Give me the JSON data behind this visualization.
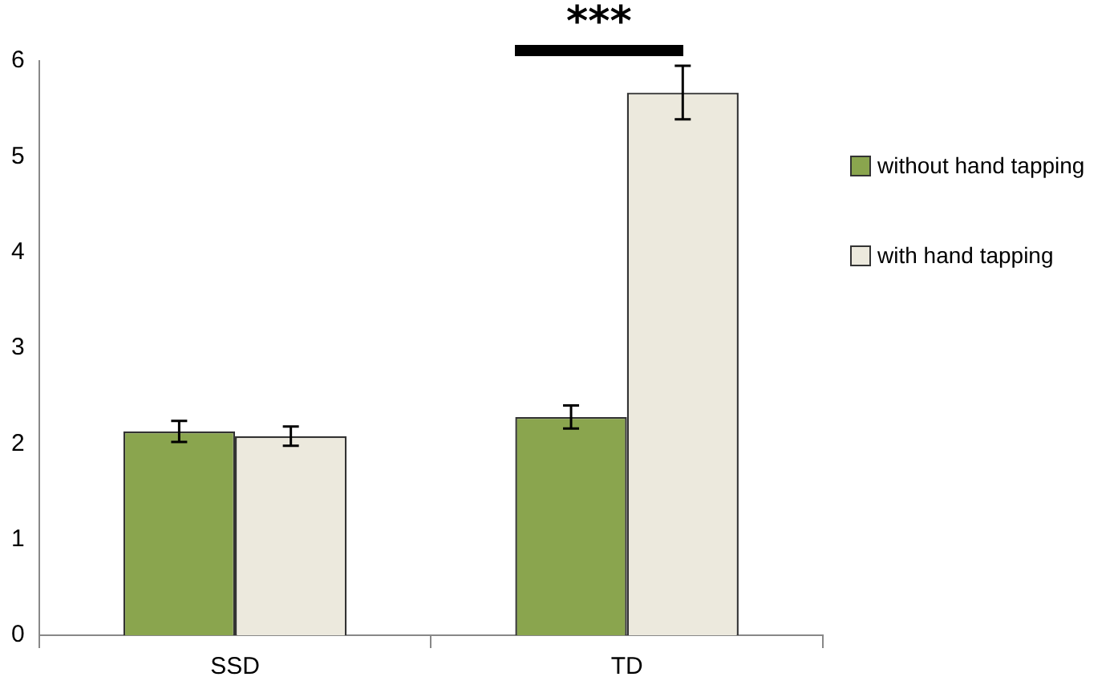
{
  "chart_data": {
    "type": "bar",
    "categories": [
      "SSD",
      "TD"
    ],
    "series": [
      {
        "name": "without hand tapping",
        "color": "#8aa54e",
        "values": [
          2.13,
          2.28
        ],
        "errors": [
          0.11,
          0.12
        ]
      },
      {
        "name": "with hand tapping",
        "color": "#ece9dd",
        "values": [
          2.08,
          5.67
        ],
        "errors": [
          0.1,
          0.28
        ]
      }
    ],
    "ylim": [
      0,
      6
    ],
    "yticks": [
      0,
      1,
      2,
      3,
      4,
      5,
      6
    ],
    "grid": false,
    "legend": "right",
    "annotations": [
      "***"
    ]
  }
}
